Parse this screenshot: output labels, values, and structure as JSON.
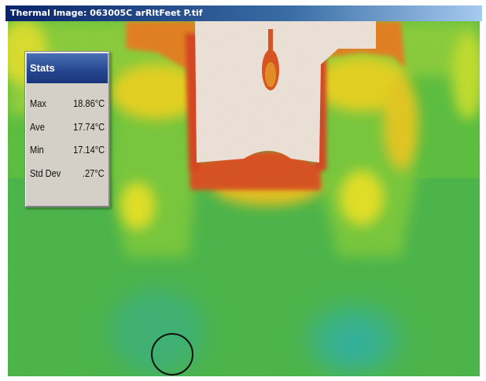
{
  "window": {
    "title": "Thermal Image: 063005C arRltFeet P.tif"
  },
  "stats": {
    "title": "Stats",
    "rows": [
      {
        "label": "Max",
        "value": "18.86°C"
      },
      {
        "label": "Ave",
        "value": "17.74°C"
      },
      {
        "label": "Min",
        "value": "17.14°C"
      },
      {
        "label": "Std Dev",
        "value": ".27°C"
      }
    ]
  },
  "colors": {
    "cold": "#3fb8a0",
    "green": "#52b84a",
    "yellow": "#f2e21a",
    "orange": "#f08a1a",
    "red": "#e0201a",
    "hot": "#fbe6e6"
  },
  "selection": {
    "shape": "circle-icon"
  }
}
